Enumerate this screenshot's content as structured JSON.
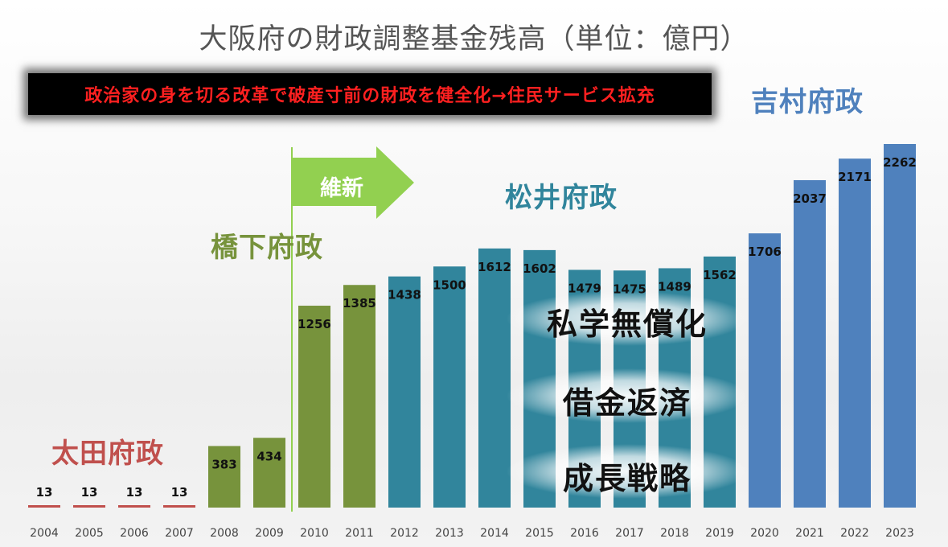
{
  "title": "大阪府の財政調整基金残高（単位：億円）",
  "banner": "政治家の身を切る改革で破産寸前の財政を健全化→住民サービス拡充",
  "eras": {
    "ota": "太田府政",
    "hashimoto": "橋下府政",
    "matsui": "松井府政",
    "yoshimura": "吉村府政"
  },
  "arrow_label": "維新",
  "policies": [
    "私学無償化",
    "借金返済",
    "成長戦略"
  ],
  "colors": {
    "ota": "#c0504d",
    "hashimoto": "#77933c",
    "matsui": "#31859c",
    "yoshimura": "#4f81bd",
    "arrow": "#92d050",
    "banner_text": "#ff2020"
  },
  "chart_data": {
    "type": "bar",
    "categories": [
      "2004",
      "2005",
      "2006",
      "2007",
      "2008",
      "2009",
      "2010",
      "2011",
      "2012",
      "2013",
      "2014",
      "2015",
      "2016",
      "2017",
      "2018",
      "2019",
      "2020",
      "2021",
      "2022",
      "2023"
    ],
    "values": [
      13,
      13,
      13,
      13,
      383,
      434,
      1256,
      1385,
      1438,
      1500,
      1612,
      1602,
      1479,
      1475,
      1489,
      1562,
      1706,
      2037,
      2171,
      2262
    ],
    "data_labels": [
      "13",
      "13",
      "13",
      "13",
      "383",
      "434",
      "1256",
      "1385",
      "1438",
      "1500",
      "1612",
      "1602",
      "1479",
      "1475",
      "1489",
      "1562",
      "1706",
      "2037",
      "2171",
      "2262"
    ],
    "bar_era": [
      "ota",
      "ota",
      "ota",
      "ota",
      "hashimoto",
      "hashimoto",
      "hashimoto",
      "hashimoto",
      "matsui",
      "matsui",
      "matsui",
      "matsui",
      "matsui",
      "matsui",
      "matsui",
      "matsui",
      "yoshimura",
      "yoshimura",
      "yoshimura",
      "yoshimura"
    ],
    "ylim": [
      0,
      2600
    ],
    "grid": false
  }
}
